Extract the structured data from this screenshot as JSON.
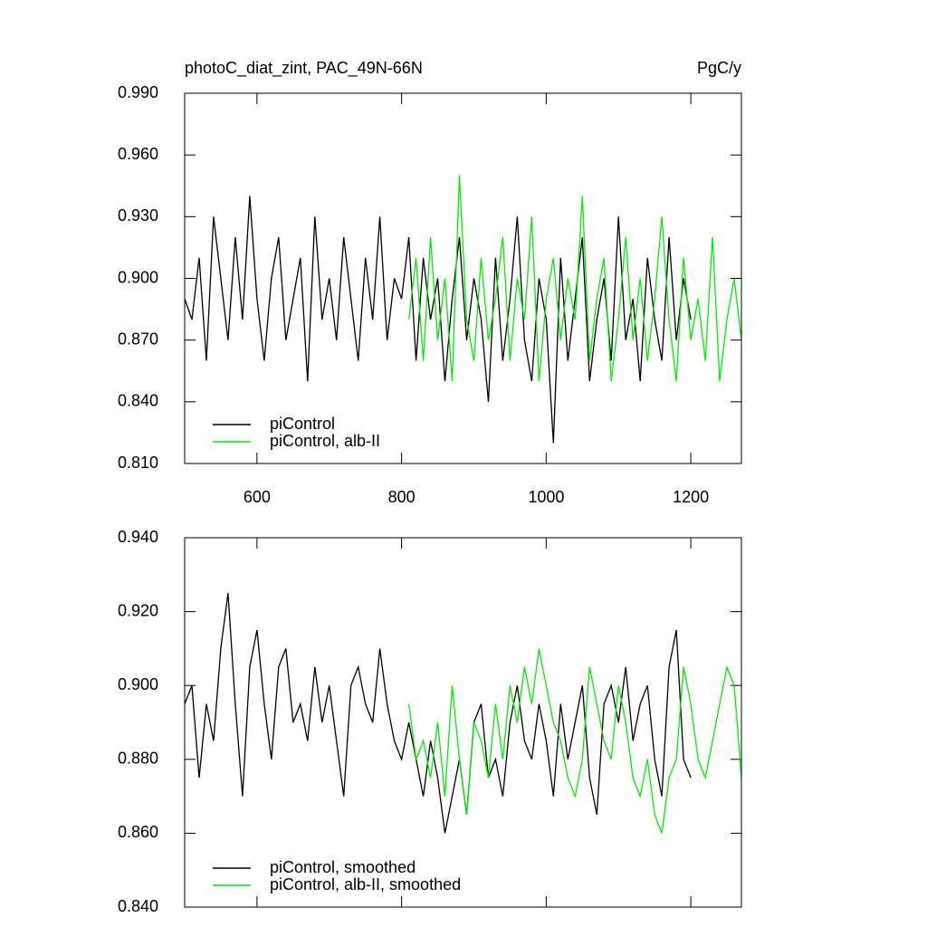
{
  "chart_data": [
    {
      "type": "line",
      "title": "photoC_diat_zint, PAC_49N-66N",
      "units": "PgC/y",
      "xlim": [
        500,
        1270
      ],
      "xticks": [
        600,
        800,
        1000,
        1200
      ],
      "show_xtick_labels": true,
      "ylim": [
        0.81,
        0.99
      ],
      "yticks": [
        {
          "value": 0.81,
          "label": "0.810"
        },
        {
          "value": 0.84,
          "label": "0.840"
        },
        {
          "value": 0.87,
          "label": "0.870"
        },
        {
          "value": 0.9,
          "label": "0.900"
        },
        {
          "value": 0.93,
          "label": "0.930"
        },
        {
          "value": 0.96,
          "label": "0.960"
        },
        {
          "value": 0.99,
          "label": "0.990"
        }
      ],
      "legend": "lower left",
      "series": [
        {
          "name": "piControl",
          "color": "#000000",
          "x_start": 500,
          "x_step": 10,
          "values": [
            0.89,
            0.88,
            0.91,
            0.86,
            0.93,
            0.9,
            0.87,
            0.92,
            0.88,
            0.94,
            0.89,
            0.86,
            0.9,
            0.92,
            0.87,
            0.89,
            0.91,
            0.85,
            0.93,
            0.88,
            0.9,
            0.87,
            0.92,
            0.89,
            0.86,
            0.91,
            0.88,
            0.93,
            0.87,
            0.9,
            0.89,
            0.92,
            0.86,
            0.91,
            0.88,
            0.9,
            0.85,
            0.89,
            0.92,
            0.87,
            0.9,
            0.88,
            0.84,
            0.91,
            0.86,
            0.89,
            0.93,
            0.87,
            0.85,
            0.9,
            0.88,
            0.82,
            0.91,
            0.86,
            0.89,
            0.92,
            0.85,
            0.88,
            0.9,
            0.86,
            0.93,
            0.87,
            0.89,
            0.85,
            0.91,
            0.88,
            0.86,
            0.92,
            0.87,
            0.9,
            0.88
          ]
        },
        {
          "name": "piControl, alb-II",
          "color": "#00ee00",
          "x_start": 810,
          "x_step": 10,
          "values": [
            0.88,
            0.91,
            0.86,
            0.92,
            0.87,
            0.9,
            0.85,
            0.95,
            0.88,
            0.86,
            0.91,
            0.87,
            0.89,
            0.92,
            0.86,
            0.9,
            0.88,
            0.93,
            0.85,
            0.89,
            0.91,
            0.87,
            0.9,
            0.88,
            0.94,
            0.86,
            0.89,
            0.91,
            0.85,
            0.88,
            0.92,
            0.87,
            0.9,
            0.86,
            0.89,
            0.93,
            0.88,
            0.85,
            0.91,
            0.87,
            0.89,
            0.86,
            0.92,
            0.85,
            0.88,
            0.9,
            0.87
          ]
        }
      ]
    },
    {
      "type": "line",
      "xlim": [
        500,
        1270
      ],
      "xticks": [
        600,
        800,
        1000,
        1200
      ],
      "show_xtick_labels": false,
      "ylim": [
        0.84,
        0.94
      ],
      "yticks": [
        {
          "value": 0.84,
          "label": "0.840"
        },
        {
          "value": 0.86,
          "label": "0.860"
        },
        {
          "value": 0.88,
          "label": "0.880"
        },
        {
          "value": 0.9,
          "label": "0.900"
        },
        {
          "value": 0.92,
          "label": "0.920"
        },
        {
          "value": 0.94,
          "label": "0.940"
        }
      ],
      "legend": "lower left",
      "series": [
        {
          "name": "piControl, smoothed",
          "color": "#000000",
          "x_start": 500,
          "x_step": 10,
          "values": [
            0.895,
            0.9,
            0.875,
            0.895,
            0.885,
            0.91,
            0.925,
            0.895,
            0.87,
            0.905,
            0.915,
            0.895,
            0.88,
            0.905,
            0.91,
            0.89,
            0.895,
            0.885,
            0.905,
            0.89,
            0.9,
            0.885,
            0.87,
            0.9,
            0.905,
            0.895,
            0.89,
            0.91,
            0.895,
            0.885,
            0.88,
            0.89,
            0.88,
            0.87,
            0.885,
            0.875,
            0.86,
            0.87,
            0.88,
            0.865,
            0.89,
            0.895,
            0.875,
            0.88,
            0.87,
            0.89,
            0.9,
            0.885,
            0.88,
            0.895,
            0.885,
            0.87,
            0.895,
            0.88,
            0.89,
            0.9,
            0.875,
            0.865,
            0.895,
            0.9,
            0.89,
            0.905,
            0.885,
            0.895,
            0.9,
            0.88,
            0.87,
            0.905,
            0.915,
            0.88,
            0.875
          ]
        },
        {
          "name": "piControl, alb-II, smoothed",
          "color": "#00ee00",
          "x_start": 810,
          "x_step": 10,
          "values": [
            0.895,
            0.88,
            0.885,
            0.875,
            0.89,
            0.87,
            0.9,
            0.88,
            0.865,
            0.89,
            0.885,
            0.875,
            0.895,
            0.88,
            0.9,
            0.89,
            0.905,
            0.895,
            0.91,
            0.9,
            0.89,
            0.885,
            0.875,
            0.87,
            0.88,
            0.905,
            0.895,
            0.885,
            0.88,
            0.9,
            0.89,
            0.875,
            0.87,
            0.88,
            0.865,
            0.86,
            0.875,
            0.88,
            0.905,
            0.895,
            0.88,
            0.875,
            0.885,
            0.895,
            0.905,
            0.9,
            0.875
          ]
        }
      ]
    }
  ]
}
